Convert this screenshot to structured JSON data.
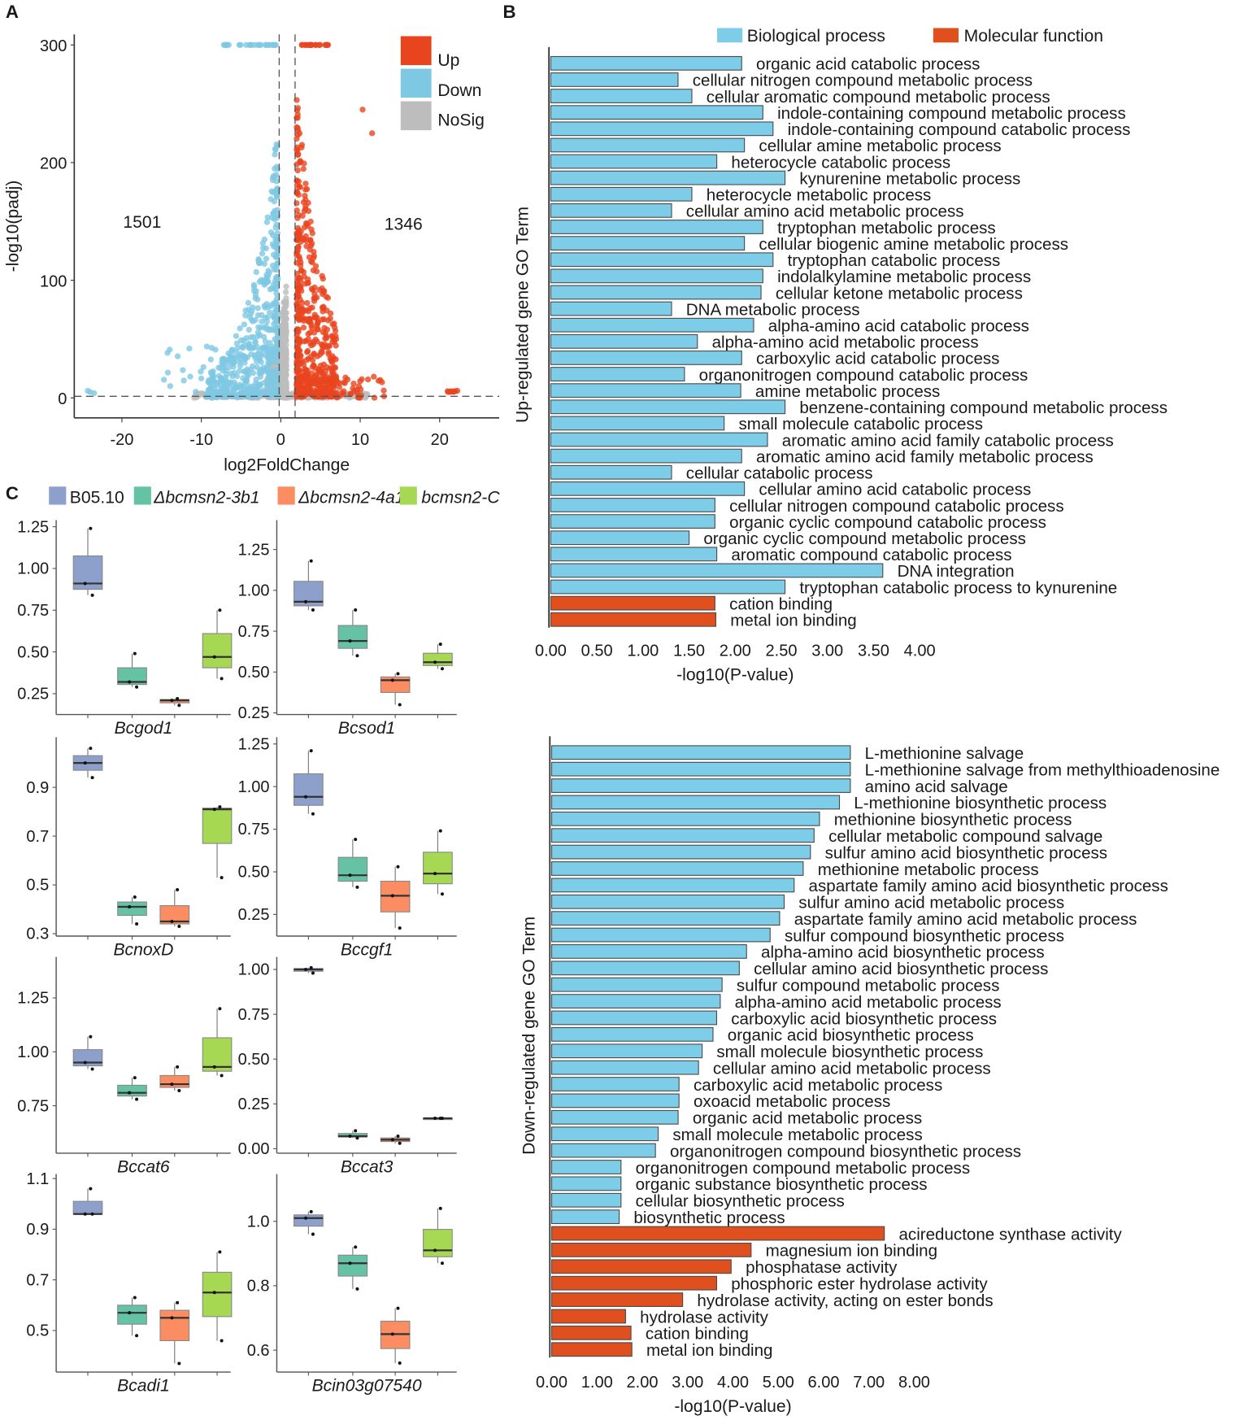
{
  "panels": {
    "a": "A",
    "b": "B",
    "c": "C"
  },
  "chart_data": [
    {
      "id": "volcano",
      "type": "scatter",
      "xlabel": "log2FoldChange",
      "ylabel": "-log10(padj)",
      "xlim": [
        -26,
        27.5
      ],
      "ylim": [
        -17,
        309
      ],
      "xticks": [
        -20,
        -10,
        0,
        10,
        20
      ],
      "yticks": [
        0,
        100,
        200,
        300
      ],
      "fc_thresholds": [
        -0.2,
        1.8
      ],
      "p_threshold": 1.3,
      "legend": [
        {
          "label": "Up",
          "color": "#e8451f"
        },
        {
          "label": "Down",
          "color": "#7ec8e3"
        },
        {
          "label": "NoSig",
          "color": "#bdbdbd"
        }
      ],
      "annotations": {
        "down_count": "1501",
        "up_count": "1346"
      },
      "counts": {
        "up": 1346,
        "down": 1501
      }
    },
    {
      "id": "go-up",
      "type": "bar",
      "orientation": "horizontal",
      "ylabel": "Up-regulated gene GO Term",
      "xlabel": "-log10(P-value)",
      "xlim": [
        0,
        4
      ],
      "xticks": [
        "0.00",
        "0.50",
        "1.00",
        "1.50",
        "2.00",
        "2.50",
        "3.00",
        "3.50",
        "4.00"
      ],
      "legend": [
        {
          "label": "Biological process",
          "color": "#7ecde8"
        },
        {
          "label": "Molecular function",
          "color": "#e0501f"
        }
      ],
      "bars": [
        {
          "term": "organic acid catabolic process",
          "value": 2.07,
          "cat": 0
        },
        {
          "term": "cellular nitrogen compound metabolic process",
          "value": 1.38,
          "cat": 0
        },
        {
          "term": "cellular aromatic compound metabolic process",
          "value": 1.53,
          "cat": 0
        },
        {
          "term": "indole-containing compound metabolic process",
          "value": 2.3,
          "cat": 0
        },
        {
          "term": "indole-containing compound catabolic process",
          "value": 2.41,
          "cat": 0
        },
        {
          "term": "cellular amine metabolic process",
          "value": 2.1,
          "cat": 0
        },
        {
          "term": "heterocycle catabolic process",
          "value": 1.8,
          "cat": 0
        },
        {
          "term": "kynurenine metabolic process",
          "value": 2.54,
          "cat": 0
        },
        {
          "term": "heterocycle metabolic process",
          "value": 1.53,
          "cat": 0
        },
        {
          "term": "cellular amino acid metabolic process",
          "value": 1.31,
          "cat": 0
        },
        {
          "term": "tryptophan metabolic process",
          "value": 2.3,
          "cat": 0
        },
        {
          "term": "cellular biogenic amine metabolic process",
          "value": 2.1,
          "cat": 0
        },
        {
          "term": "tryptophan catabolic process",
          "value": 2.41,
          "cat": 0
        },
        {
          "term": "indolalkylamine metabolic process",
          "value": 2.3,
          "cat": 0
        },
        {
          "term": "cellular ketone metabolic process",
          "value": 2.28,
          "cat": 0
        },
        {
          "term": "DNA metabolic process",
          "value": 1.31,
          "cat": 0
        },
        {
          "term": "alpha-amino acid catabolic process",
          "value": 2.2,
          "cat": 0
        },
        {
          "term": "alpha-amino acid metabolic process",
          "value": 1.59,
          "cat": 0
        },
        {
          "term": "carboxylic acid catabolic process",
          "value": 2.07,
          "cat": 0
        },
        {
          "term": "organonitrogen compound catabolic process",
          "value": 1.45,
          "cat": 0
        },
        {
          "term": "amine metabolic process",
          "value": 2.06,
          "cat": 0
        },
        {
          "term": "benzene-containing compound metabolic process",
          "value": 2.54,
          "cat": 0
        },
        {
          "term": "small molecule catabolic process",
          "value": 1.88,
          "cat": 0
        },
        {
          "term": "aromatic amino acid family catabolic process",
          "value": 2.35,
          "cat": 0
        },
        {
          "term": "aromatic amino acid family metabolic process",
          "value": 2.07,
          "cat": 0
        },
        {
          "term": "cellular catabolic process",
          "value": 1.31,
          "cat": 0
        },
        {
          "term": "cellular amino acid catabolic process",
          "value": 2.1,
          "cat": 0
        },
        {
          "term": "cellular nitrogen compound catabolic process",
          "value": 1.78,
          "cat": 0
        },
        {
          "term": "organic cyclic compound catabolic process",
          "value": 1.78,
          "cat": 0
        },
        {
          "term": "organic cyclic compound metabolic process",
          "value": 1.5,
          "cat": 0
        },
        {
          "term": "aromatic compound catabolic process",
          "value": 1.8,
          "cat": 0
        },
        {
          "term": "DNA integration",
          "value": 3.6,
          "cat": 0
        },
        {
          "term": "tryptophan catabolic process to kynurenine",
          "value": 2.54,
          "cat": 0
        },
        {
          "term": "cation binding",
          "value": 1.78,
          "cat": 1
        },
        {
          "term": "metal ion binding",
          "value": 1.79,
          "cat": 1
        }
      ]
    },
    {
      "id": "go-down",
      "type": "bar",
      "orientation": "horizontal",
      "ylabel": "Down-regulated gene GO Term",
      "xlabel": "-log10(P-value)",
      "xlim": [
        0,
        8
      ],
      "xticks": [
        "0.00",
        "1.00",
        "2.00",
        "3.00",
        "4.00",
        "5.00",
        "6.00",
        "7.00",
        "8.00"
      ],
      "bars": [
        {
          "term": "L-methionine salvage",
          "value": 6.59,
          "cat": 0
        },
        {
          "term": "L-methionine salvage from methylthioadenosine",
          "value": 6.59,
          "cat": 0
        },
        {
          "term": "amino acid salvage",
          "value": 6.59,
          "cat": 0
        },
        {
          "term": "L-methionine biosynthetic process",
          "value": 6.35,
          "cat": 0
        },
        {
          "term": "methionine biosynthetic process",
          "value": 5.91,
          "cat": 0
        },
        {
          "term": "cellular metabolic compound salvage",
          "value": 5.79,
          "cat": 0
        },
        {
          "term": "sulfur amino acid biosynthetic process",
          "value": 5.71,
          "cat": 0
        },
        {
          "term": "methionine metabolic process",
          "value": 5.55,
          "cat": 0
        },
        {
          "term": "aspartate family amino acid biosynthetic process",
          "value": 5.35,
          "cat": 0
        },
        {
          "term": "sulfur amino acid metabolic process",
          "value": 5.13,
          "cat": 0
        },
        {
          "term": "aspartate family amino acid metabolic process",
          "value": 5.03,
          "cat": 0
        },
        {
          "term": "sulfur compound biosynthetic process",
          "value": 4.82,
          "cat": 0
        },
        {
          "term": "alpha-amino acid biosynthetic process",
          "value": 4.3,
          "cat": 0
        },
        {
          "term": "cellular amino acid biosynthetic process",
          "value": 4.14,
          "cat": 0
        },
        {
          "term": "sulfur compound metabolic process",
          "value": 3.76,
          "cat": 0
        },
        {
          "term": "alpha-amino acid metabolic process",
          "value": 3.72,
          "cat": 0
        },
        {
          "term": "carboxylic acid biosynthetic process",
          "value": 3.64,
          "cat": 0
        },
        {
          "term": "organic acid biosynthetic process",
          "value": 3.56,
          "cat": 0
        },
        {
          "term": "small molecule biosynthetic process",
          "value": 3.32,
          "cat": 0
        },
        {
          "term": "cellular amino acid metabolic process",
          "value": 3.24,
          "cat": 0
        },
        {
          "term": "carboxylic acid metabolic process",
          "value": 2.81,
          "cat": 0
        },
        {
          "term": "oxoacid metabolic process",
          "value": 2.81,
          "cat": 0
        },
        {
          "term": "organic acid metabolic process",
          "value": 2.79,
          "cat": 0
        },
        {
          "term": "small molecule metabolic process",
          "value": 2.35,
          "cat": 0
        },
        {
          "term": "organonitrogen compound biosynthetic process",
          "value": 2.29,
          "cat": 0
        },
        {
          "term": "organonitrogen compound metabolic process",
          "value": 1.53,
          "cat": 0
        },
        {
          "term": "organic substance biosynthetic process",
          "value": 1.53,
          "cat": 0
        },
        {
          "term": "cellular biosynthetic process",
          "value": 1.53,
          "cat": 0
        },
        {
          "term": "biosynthetic process",
          "value": 1.49,
          "cat": 0
        },
        {
          "term": "acireductone synthase activity",
          "value": 7.34,
          "cat": 1
        },
        {
          "term": "magnesium ion binding",
          "value": 4.4,
          "cat": 1
        },
        {
          "term": "phosphatase activity",
          "value": 3.96,
          "cat": 1
        },
        {
          "term": "phosphoric ester hydrolase activity",
          "value": 3.64,
          "cat": 1
        },
        {
          "term": "hydrolase activity, acting on ester bonds",
          "value": 2.89,
          "cat": 1
        },
        {
          "term": "hydrolase activity",
          "value": 1.63,
          "cat": 1
        },
        {
          "term": "cation binding",
          "value": 1.75,
          "cat": 1
        },
        {
          "term": "metal ion binding",
          "value": 1.77,
          "cat": 1
        }
      ]
    },
    {
      "id": "expression-boxplots",
      "type": "box",
      "legend": [
        {
          "label": "B05.10",
          "color": "#8da0cb",
          "italic": false
        },
        {
          "label": "Δbcmsn2-3b1",
          "color": "#66c2a5",
          "italic": true
        },
        {
          "label": "Δbcmsn2-4a1",
          "color": "#fc8d62",
          "italic": true
        },
        {
          "label": "bcmsn2-C",
          "color": "#a6d854",
          "italic": true
        }
      ],
      "panels": [
        {
          "gene": "Bcgod1",
          "ylim": [
            0.125,
            1.29
          ],
          "yticks": [
            "0.25",
            "0.50",
            "0.75",
            "1.00",
            "1.25"
          ],
          "groups": [
            [
              0.84,
              0.91,
              1.24
            ],
            [
              0.29,
              0.32,
              0.49
            ],
            [
              0.18,
              0.21,
              0.22
            ],
            [
              0.34,
              0.47,
              0.75
            ]
          ]
        },
        {
          "gene": "Bcsod1",
          "ylim": [
            0.24,
            1.43
          ],
          "yticks": [
            "0.25",
            "0.50",
            "0.75",
            "1.00",
            "1.25"
          ],
          "groups": [
            [
              0.88,
              0.93,
              1.18
            ],
            [
              0.6,
              0.69,
              0.88
            ],
            [
              0.3,
              0.45,
              0.49
            ],
            [
              0.52,
              0.56,
              0.67
            ]
          ]
        },
        {
          "gene": "BcnoxD",
          "ylim": [
            0.29,
            1.106
          ],
          "yticks": [
            "0.3",
            "0.5",
            "0.7",
            "0.9"
          ],
          "groups": [
            [
              0.94,
              1.0,
              1.06
            ],
            [
              0.34,
              0.41,
              0.45
            ],
            [
              0.33,
              0.35,
              0.48
            ],
            [
              0.53,
              0.81,
              0.82
            ]
          ]
        },
        {
          "gene": "Bccgf1",
          "ylim": [
            0.123,
            1.29
          ],
          "yticks": [
            "0.25",
            "0.50",
            "0.75",
            "1.00",
            "1.25"
          ],
          "groups": [
            [
              0.84,
              0.94,
              1.21
            ],
            [
              0.41,
              0.48,
              0.69
            ],
            [
              0.17,
              0.36,
              0.53
            ],
            [
              0.37,
              0.49,
              0.74
            ]
          ]
        },
        {
          "gene": "Bccat6",
          "ylim": [
            0.53,
            1.44
          ],
          "yticks": [
            "0.75",
            "1.00",
            "1.25"
          ],
          "groups": [
            [
              0.92,
              0.95,
              1.07
            ],
            [
              0.78,
              0.81,
              0.88
            ],
            [
              0.82,
              0.85,
              0.93
            ],
            [
              0.89,
              0.93,
              1.2
            ]
          ]
        },
        {
          "gene": "Bccat3",
          "ylim": [
            -0.025,
            1.07
          ],
          "yticks": [
            "0.00",
            "0.25",
            "0.50",
            "0.75",
            "1.00"
          ],
          "groups": [
            [
              0.98,
              1.0,
              1.01
            ],
            [
              0.06,
              0.07,
              0.1
            ],
            [
              0.03,
              0.05,
              0.07
            ],
            [
              0.17,
              0.17,
              0.17
            ]
          ]
        },
        {
          "gene": "Bcadi1",
          "ylim": [
            0.336,
            1.118
          ],
          "yticks": [
            "0.5",
            "0.7",
            "0.9",
            "1.1"
          ],
          "groups": [
            [
              0.96,
              0.96,
              1.06
            ],
            [
              0.48,
              0.57,
              0.63
            ],
            [
              0.37,
              0.55,
              0.61
            ],
            [
              0.46,
              0.65,
              0.81
            ]
          ]
        },
        {
          "gene": "Bcin03g07540",
          "ylim": [
            0.532,
            1.147
          ],
          "yticks": [
            "0.6",
            "0.8",
            "1.0"
          ],
          "groups": [
            [
              0.96,
              1.01,
              1.03
            ],
            [
              0.79,
              0.87,
              0.92
            ],
            [
              0.56,
              0.65,
              0.73
            ],
            [
              0.87,
              0.91,
              1.04
            ]
          ]
        }
      ]
    }
  ]
}
